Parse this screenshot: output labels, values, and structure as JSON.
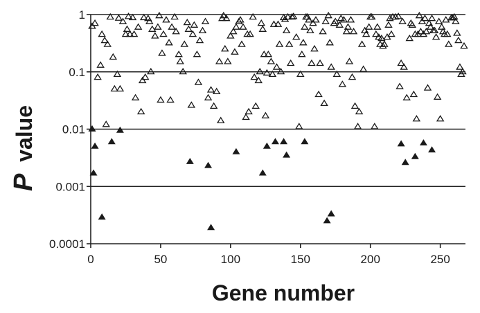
{
  "chart_data": {
    "type": "scatter",
    "title": "",
    "xlabel": "Gene number",
    "ylabel": {
      "italic_part": "P",
      "rest": "value"
    },
    "xlim": [
      0,
      268
    ],
    "ylim": [
      0.0001,
      1
    ],
    "y_scale": "log",
    "x_ticks": [
      0,
      50,
      100,
      150,
      200,
      250
    ],
    "x_tick_labels": [
      "0",
      "50",
      "100",
      "150",
      "200",
      "250"
    ],
    "y_ticks": [
      0.0001,
      0.001,
      0.01,
      0.1,
      1
    ],
    "y_tick_labels": [
      "0.0001",
      "0.001",
      "0.01",
      "0.1",
      "1"
    ],
    "grid": "horizontal",
    "legend": "none",
    "colors": {
      "marker": "#1a1a1a",
      "grid": "#222222",
      "background": "#ffffff"
    },
    "series": [
      {
        "marker": "open-triangle",
        "points": [
          [
            1,
            0.62
          ],
          [
            3,
            0.7
          ],
          [
            5,
            0.08
          ],
          [
            7,
            0.13
          ],
          [
            8,
            0.45
          ],
          [
            10,
            0.35
          ],
          [
            11,
            0.012
          ],
          [
            12,
            0.3
          ],
          [
            14,
            0.9
          ],
          [
            16,
            0.18
          ],
          [
            17,
            0.05
          ],
          [
            19,
            0.09
          ],
          [
            20,
            0.86
          ],
          [
            21,
            0.05
          ],
          [
            23,
            0.75
          ],
          [
            25,
            0.45
          ],
          [
            26,
            0.55
          ],
          [
            27,
            0.92
          ],
          [
            28,
            0.45
          ],
          [
            30,
            0.88
          ],
          [
            31,
            0.45
          ],
          [
            32,
            0.035
          ],
          [
            34,
            0.6
          ],
          [
            36,
            0.02
          ],
          [
            37,
            0.07
          ],
          [
            38,
            0.88
          ],
          [
            39,
            0.08
          ],
          [
            41,
            0.85
          ],
          [
            42,
            0.75
          ],
          [
            43,
            0.1
          ],
          [
            44,
            0.55
          ],
          [
            46,
            0.42
          ],
          [
            48,
            0.6
          ],
          [
            49,
            0.95
          ],
          [
            50,
            0.032
          ],
          [
            51,
            0.21
          ],
          [
            52,
            0.45
          ],
          [
            54,
            0.8
          ],
          [
            56,
            0.32
          ],
          [
            57,
            0.032
          ],
          [
            58,
            0.6
          ],
          [
            60,
            0.9
          ],
          [
            61,
            0.5
          ],
          [
            63,
            0.2
          ],
          [
            64,
            0.15
          ],
          [
            66,
            0.1
          ],
          [
            67,
            0.3
          ],
          [
            69,
            0.72
          ],
          [
            70,
            0.55
          ],
          [
            72,
            0.026
          ],
          [
            73,
            0.45
          ],
          [
            74,
            0.65
          ],
          [
            76,
            0.2
          ],
          [
            77,
            0.065
          ],
          [
            78,
            0.35
          ],
          [
            80,
            0.52
          ],
          [
            82,
            0.75
          ],
          [
            84,
            0.035
          ],
          [
            86,
            0.048
          ],
          [
            88,
            0.025
          ],
          [
            90,
            0.045
          ],
          [
            92,
            0.15
          ],
          [
            93,
            0.014
          ],
          [
            94,
            0.85
          ],
          [
            95,
            0.95
          ],
          [
            96,
            0.25
          ],
          [
            97,
            0.85
          ],
          [
            98,
            0.15
          ],
          [
            100,
            0.42
          ],
          [
            102,
            0.5
          ],
          [
            103,
            0.22
          ],
          [
            104,
            0.6
          ],
          [
            106,
            0.75
          ],
          [
            107,
            0.8
          ],
          [
            108,
            0.3
          ],
          [
            109,
            0.6
          ],
          [
            111,
            0.016
          ],
          [
            112,
            0.45
          ],
          [
            113,
            0.02
          ],
          [
            114,
            0.45
          ],
          [
            116,
            0.9
          ],
          [
            117,
            0.08
          ],
          [
            118,
            0.025
          ],
          [
            120,
            0.07
          ],
          [
            121,
            0.1
          ],
          [
            122,
            0.7
          ],
          [
            123,
            0.55
          ],
          [
            124,
            0.2
          ],
          [
            125,
            0.017
          ],
          [
            126,
            0.095
          ],
          [
            127,
            0.2
          ],
          [
            129,
            0.15
          ],
          [
            130,
            0.09
          ],
          [
            131,
            0.67
          ],
          [
            133,
            0.12
          ],
          [
            134,
            0.67
          ],
          [
            135,
            0.3
          ],
          [
            136,
            0.1
          ],
          [
            138,
            0.88
          ],
          [
            139,
            0.82
          ],
          [
            140,
            0.52
          ],
          [
            141,
            0.9
          ],
          [
            142,
            0.3
          ],
          [
            143,
            0.14
          ],
          [
            144,
            0.9
          ],
          [
            145,
            0.92
          ],
          [
            147,
            0.4
          ],
          [
            149,
            0.011
          ],
          [
            150,
            0.09
          ],
          [
            151,
            0.2
          ],
          [
            152,
            0.32
          ],
          [
            153,
            0.6
          ],
          [
            154,
            0.9
          ],
          [
            155,
            0.9
          ],
          [
            156,
            0.8
          ],
          [
            157,
            0.52
          ],
          [
            158,
            0.14
          ],
          [
            159,
            0.7
          ],
          [
            160,
            0.25
          ],
          [
            161,
            0.8
          ],
          [
            163,
            0.04
          ],
          [
            164,
            0.14
          ],
          [
            166,
            0.5
          ],
          [
            167,
            0.028
          ],
          [
            168,
            0.75
          ],
          [
            170,
            0.95
          ],
          [
            171,
            0.32
          ],
          [
            172,
            0.12
          ],
          [
            174,
            0.7
          ],
          [
            175,
            0.75
          ],
          [
            176,
            0.09
          ],
          [
            178,
            0.65
          ],
          [
            179,
            0.85
          ],
          [
            180,
            0.06
          ],
          [
            181,
            0.8
          ],
          [
            183,
            0.5
          ],
          [
            184,
            0.6
          ],
          [
            185,
            0.15
          ],
          [
            186,
            0.8
          ],
          [
            187,
            0.08
          ],
          [
            188,
            0.5
          ],
          [
            189,
            0.025
          ],
          [
            191,
            0.011
          ],
          [
            192,
            0.02
          ],
          [
            194,
            0.3
          ],
          [
            195,
            0.11
          ],
          [
            196,
            0.52
          ],
          [
            197,
            0.45
          ],
          [
            199,
            0.6
          ],
          [
            200,
            0.9
          ],
          [
            201,
            0.9
          ],
          [
            203,
            0.011
          ],
          [
            204,
            0.45
          ],
          [
            205,
            0.6
          ],
          [
            206,
            0.4
          ],
          [
            207,
            0.3
          ],
          [
            208,
            0.38
          ],
          [
            209,
            0.28
          ],
          [
            210,
            0.3
          ],
          [
            212,
            0.4
          ],
          [
            213,
            0.65
          ],
          [
            214,
            0.85
          ],
          [
            215,
            0.45
          ],
          [
            216,
            0.9
          ],
          [
            218,
            0.9
          ],
          [
            220,
            0.92
          ],
          [
            221,
            0.055
          ],
          [
            222,
            0.14
          ],
          [
            223,
            0.75
          ],
          [
            224,
            0.12
          ],
          [
            226,
            0.035
          ],
          [
            228,
            0.38
          ],
          [
            229,
            0.7
          ],
          [
            230,
            0.65
          ],
          [
            231,
            0.04
          ],
          [
            232,
            0.45
          ],
          [
            233,
            0.015
          ],
          [
            234,
            0.45
          ],
          [
            235,
            0.95
          ],
          [
            236,
            0.5
          ],
          [
            237,
            0.75
          ],
          [
            238,
            0.45
          ],
          [
            239,
            0.85
          ],
          [
            240,
            0.5
          ],
          [
            241,
            0.052
          ],
          [
            242,
            0.7
          ],
          [
            243,
            0.6
          ],
          [
            244,
            0.85
          ],
          [
            245,
            0.52
          ],
          [
            246,
            0.52
          ],
          [
            247,
            0.4
          ],
          [
            248,
            0.036
          ],
          [
            249,
            0.75
          ],
          [
            250,
            0.015
          ],
          [
            251,
            0.6
          ],
          [
            252,
            0.5
          ],
          [
            253,
            0.45
          ],
          [
            254,
            0.8
          ],
          [
            255,
            0.45
          ],
          [
            256,
            0.3
          ],
          [
            258,
            0.87
          ],
          [
            259,
            0.87
          ],
          [
            260,
            0.9
          ],
          [
            261,
            0.75
          ],
          [
            262,
            0.47
          ],
          [
            263,
            0.35
          ],
          [
            264,
            0.12
          ],
          [
            265,
            0.09
          ],
          [
            266,
            0.1
          ],
          [
            267,
            0.28
          ]
        ]
      },
      {
        "marker": "filled-triangle",
        "points": [
          [
            1,
            0.01
          ],
          [
            2,
            0.0017
          ],
          [
            3,
            0.005
          ],
          [
            8,
            0.00029
          ],
          [
            15,
            0.006
          ],
          [
            21,
            0.0095
          ],
          [
            71,
            0.0027
          ],
          [
            84,
            0.0023
          ],
          [
            86,
            0.00019
          ],
          [
            104,
            0.004
          ],
          [
            123,
            0.0017
          ],
          [
            126,
            0.005
          ],
          [
            132,
            0.006
          ],
          [
            138,
            0.006
          ],
          [
            140,
            0.0035
          ],
          [
            153,
            0.006
          ],
          [
            169,
            0.00025
          ],
          [
            172,
            0.00033
          ],
          [
            222,
            0.0055
          ],
          [
            225,
            0.0026
          ],
          [
            232,
            0.0033
          ],
          [
            238,
            0.0057
          ],
          [
            244,
            0.0043
          ]
        ]
      }
    ]
  }
}
